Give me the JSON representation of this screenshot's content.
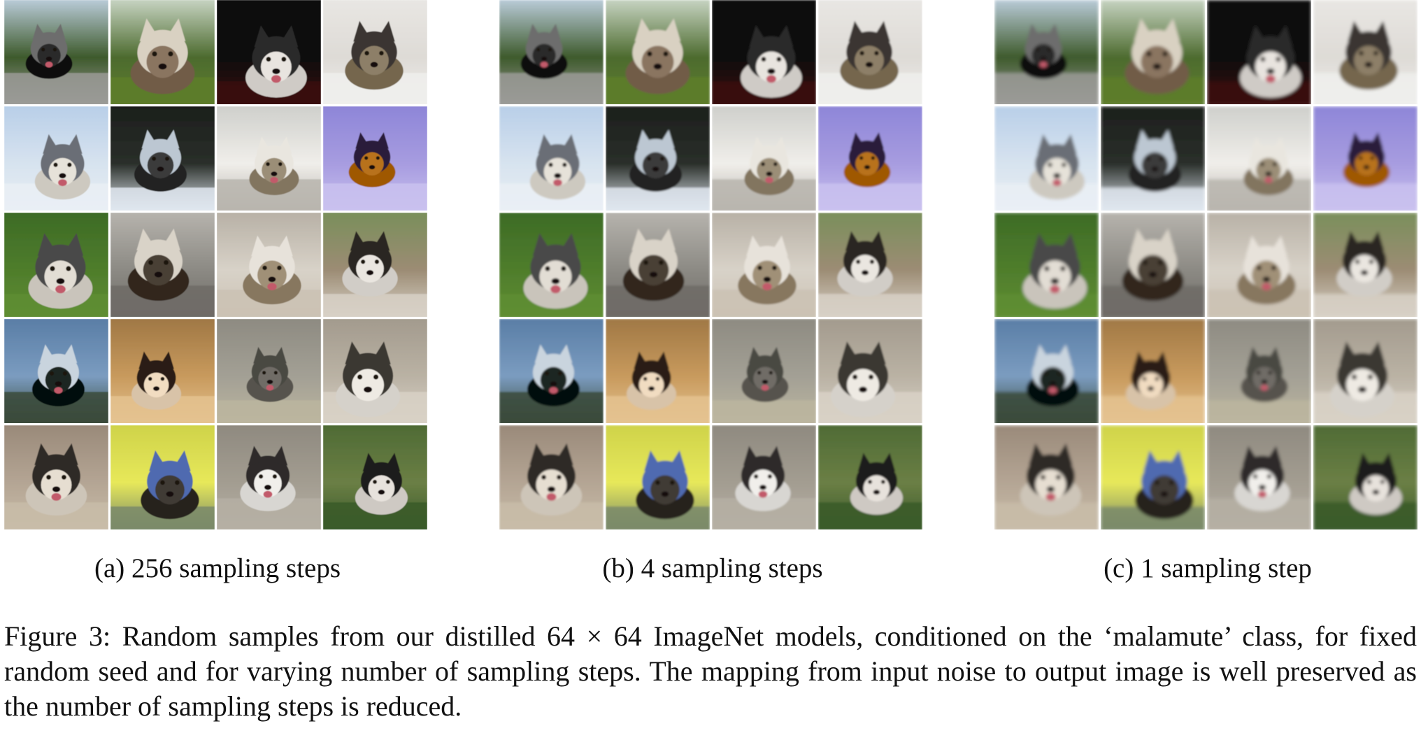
{
  "figure": {
    "label": "Figure 3:",
    "caption": "Random samples from our distilled 64 × 64 ImageNet models, conditioned on the ‘malamute’ class, for fixed random seed and for varying number of sampling steps. The mapping from input noise to output image is well preserved as the number of sampling steps is reduced."
  },
  "panels": [
    {
      "id": "a",
      "caption": "(a) 256 sampling steps"
    },
    {
      "id": "b",
      "caption": "(b) 4 sampling steps"
    },
    {
      "id": "c",
      "caption": "(c) 1 sampling step"
    }
  ],
  "grid": {
    "rows": 5,
    "cols": 4
  },
  "tiles": [
    {
      "sky": "#b9cbd8",
      "bg": "#3e5a2c",
      "ground": "#9a9a96",
      "subject": "#2a2a2a",
      "accent": "#6d6d6d"
    },
    {
      "sky": "#c6d3c1",
      "bg": "#4d6b2f",
      "ground": "#5d7d2c",
      "subject": "#8a7560",
      "accent": "#d9d1c2"
    },
    {
      "sky": "#0c0c0c",
      "bg": "#0d0d0d",
      "ground": "#3a0f0d",
      "subject": "#e8e4df",
      "accent": "#2b2b2b"
    },
    {
      "sky": "#e8e6e3",
      "bg": "#dedbd6",
      "ground": "#eeeeec",
      "subject": "#8d7f67",
      "accent": "#3b3530"
    },
    {
      "sky": "#b9cfe8",
      "bg": "#d7e3ef",
      "ground": "#e9eef4",
      "subject": "#e6e2d9",
      "accent": "#6a6e76"
    },
    {
      "sky": "#1c1f1c",
      "bg": "#2a2f2a",
      "ground": "#dfe6ee",
      "subject": "#3b3b3b",
      "accent": "#bcc7d2"
    },
    {
      "sky": "#cfd0cc",
      "bg": "#f0eeea",
      "ground": "#b8b5ae",
      "subject": "#9b8e77",
      "accent": "#e9e6df"
    },
    {
      "sky": "#8e86d8",
      "bg": "#a79ce0",
      "ground": "#c9c1ee",
      "subject": "#b8721f",
      "accent": "#2a1b3a"
    },
    {
      "sky": "#3d6b26",
      "bg": "#4f7d2c",
      "ground": "#5e8d31",
      "subject": "#e2ddd4",
      "accent": "#4a4a48"
    },
    {
      "sky": "#b6b3ad",
      "bg": "#8c8a84",
      "ground": "#6e6b66",
      "subject": "#4a3f35",
      "accent": "#d9d3c8"
    },
    {
      "sky": "#b8b1a6",
      "bg": "#d8d2c8",
      "ground": "#cbc2b4",
      "subject": "#a09077",
      "accent": "#e7e2da"
    },
    {
      "sky": "#7a8f5b",
      "bg": "#9c8c74",
      "ground": "#d7d0c6",
      "subject": "#eae6e0",
      "accent": "#2b2623"
    },
    {
      "sky": "#5a7ea6",
      "bg": "#7b9cc0",
      "ground": "#3a4a3a",
      "subject": "#1e2520",
      "accent": "#c9d4de"
    },
    {
      "sky": "#a07845",
      "bg": "#c89a5d",
      "ground": "#e4c28f",
      "subject": "#f1dcc1",
      "accent": "#2a1d15"
    },
    {
      "sky": "#8e8b82",
      "bg": "#a3a095",
      "ground": "#bbb59f",
      "subject": "#6f6c66",
      "accent": "#4a4843"
    },
    {
      "sky": "#a39b8e",
      "bg": "#bab2a4",
      "ground": "#d8d1c6",
      "subject": "#eeeae3",
      "accent": "#3b3833"
    },
    {
      "sky": "#9a8a7a",
      "bg": "#b4a594",
      "ground": "#c8bca8",
      "subject": "#e6ded1",
      "accent": "#2e2a27"
    },
    {
      "sky": "#cfd34a",
      "bg": "#e7e85a",
      "ground": "#7a8a6a",
      "subject": "#3f3a36",
      "accent": "#4f6bb0"
    },
    {
      "sky": "#8f8a80",
      "bg": "#a39d91",
      "ground": "#b5afa3",
      "subject": "#f1efeb",
      "accent": "#2d2c2b"
    },
    {
      "sky": "#4f6b35",
      "bg": "#6b7f45",
      "ground": "#3a5a2a",
      "subject": "#e7e2dc",
      "accent": "#1f1c1b"
    }
  ]
}
